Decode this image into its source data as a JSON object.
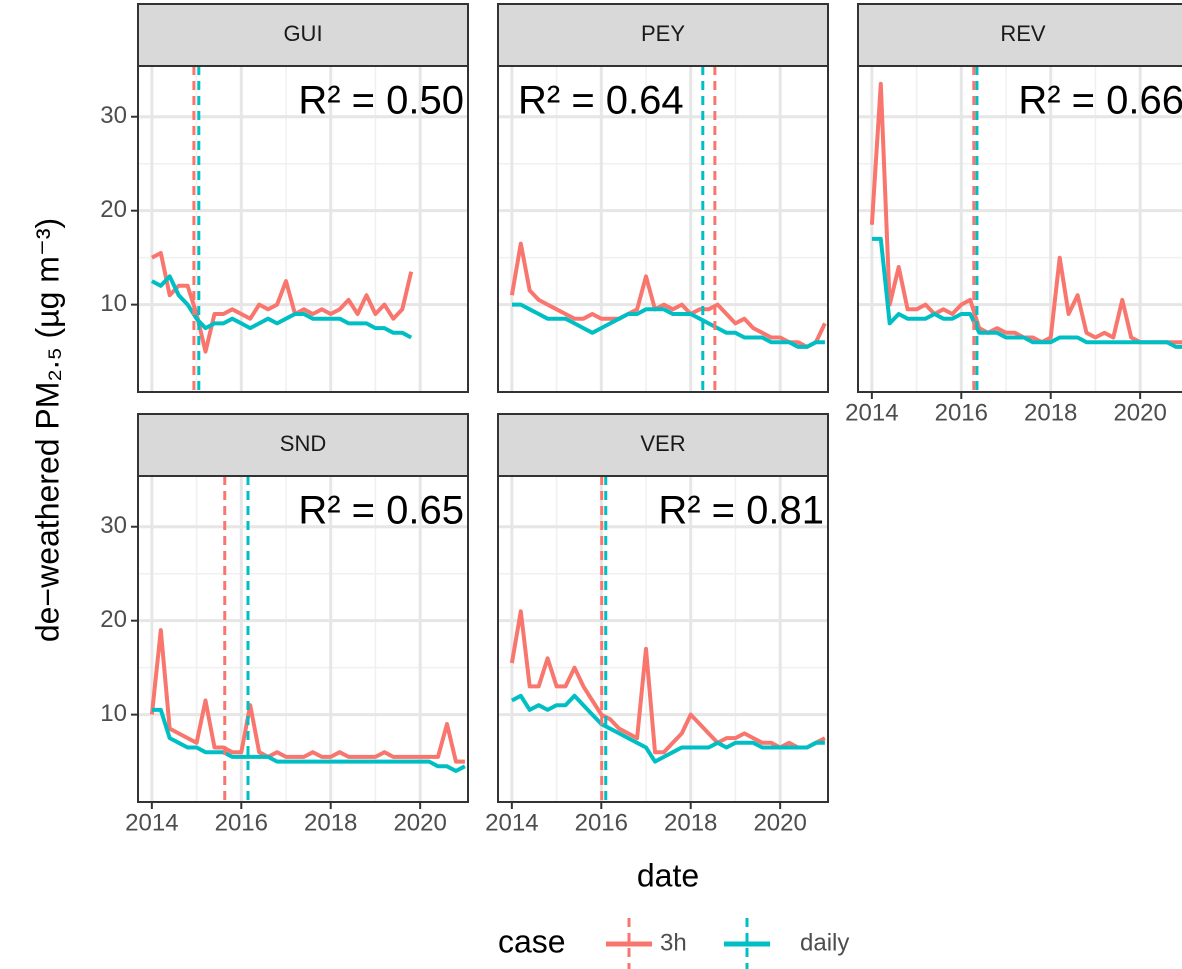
{
  "chart_data": {
    "type": "line",
    "xlabel": "date",
    "ylabel": "de−weathered PM₂.₅ (µg m⁻³)",
    "legend_title": "case",
    "legend": [
      {
        "name": "3h",
        "color": "#f8766d"
      },
      {
        "name": "daily",
        "color": "#00bfc4"
      }
    ],
    "grid": true,
    "xlim": [
      2013.69,
      2021.07
    ],
    "xticks": [
      2014,
      2016,
      2018,
      2020
    ],
    "ylim": [
      0.7,
      35.4
    ],
    "yticks": [
      10,
      20,
      30
    ],
    "x": [
      2014.0,
      2014.2,
      2014.4,
      2014.6,
      2014.8,
      2015.0,
      2015.2,
      2015.4,
      2015.6,
      2015.8,
      2016.0,
      2016.2,
      2016.4,
      2016.6,
      2016.8,
      2017.0,
      2017.2,
      2017.4,
      2017.6,
      2017.8,
      2018.0,
      2018.2,
      2018.4,
      2018.6,
      2018.8,
      2019.0,
      2019.2,
      2019.4,
      2019.6,
      2019.8,
      2020.0,
      2020.2,
      2020.4,
      2020.6,
      2020.8,
      2021.0
    ],
    "panels": [
      {
        "title": "GUI",
        "annotation": "R² = 0.50",
        "series": [
          {
            "break": 2014.94,
            "values": [
              15,
              15.5,
              11,
              12,
              12,
              9,
              5,
              9,
              9,
              9.5,
              9,
              8.5,
              10,
              9.5,
              10,
              12.5,
              9,
              9.5,
              9,
              9.5,
              9,
              9.5,
              10.5,
              9,
              11,
              9,
              10,
              8.5,
              9.5,
              13.5,
              null,
              null,
              null,
              null,
              null,
              null
            ]
          },
          {
            "break": 2015.05,
            "values": [
              12.5,
              12,
              13,
              11,
              10,
              8.5,
              7.5,
              8,
              8,
              8.5,
              8,
              7.5,
              8,
              8.5,
              8,
              8.5,
              9,
              9,
              8.5,
              8.5,
              8.5,
              8.5,
              8,
              8,
              8,
              7.5,
              7.5,
              7,
              7,
              6.5,
              null,
              null,
              null,
              null,
              null,
              null
            ]
          }
        ]
      },
      {
        "title": "PEY",
        "annotation": "R² = 0.64",
        "series": [
          {
            "break": 2018.54,
            "values": [
              11,
              16.5,
              11.5,
              10.5,
              10,
              9.5,
              9,
              8.5,
              8.5,
              9,
              8.5,
              8.5,
              8.5,
              9,
              9.5,
              13,
              9.5,
              10,
              9.5,
              10,
              9,
              9.5,
              9.5,
              10,
              9,
              8,
              8.5,
              7.5,
              7,
              6.5,
              6.5,
              6,
              6,
              5.5,
              6,
              8
            ]
          },
          {
            "break": 2018.27,
            "values": [
              10,
              10,
              9.5,
              9,
              8.5,
              8.5,
              8.5,
              8,
              7.5,
              7,
              7.5,
              8,
              8.5,
              9,
              9,
              9.5,
              9.5,
              9.5,
              9,
              9,
              9,
              8.5,
              8,
              7.5,
              7,
              7,
              6.5,
              6.5,
              6.5,
              6,
              6,
              6,
              5.5,
              5.5,
              6,
              6
            ]
          }
        ]
      },
      {
        "title": "REV",
        "annotation": "R² = 0.66",
        "series": [
          {
            "break": 2016.28,
            "values": [
              18.5,
              33.5,
              10,
              14,
              9.5,
              9.5,
              10,
              9,
              9.5,
              9,
              10,
              10.5,
              7.5,
              7,
              7.5,
              7,
              7,
              6.5,
              6.5,
              6,
              6.5,
              15,
              9,
              11,
              7,
              6.5,
              7,
              6.5,
              10.5,
              6.5,
              6,
              6,
              6,
              6,
              6,
              6
            ]
          },
          {
            "break": 2016.35,
            "values": [
              17,
              17,
              8,
              9,
              8.5,
              8.5,
              8.5,
              9,
              8.5,
              8.5,
              9,
              9,
              7,
              7,
              7,
              6.5,
              6.5,
              6.5,
              6,
              6,
              6,
              6.5,
              6.5,
              6.5,
              6,
              6,
              6,
              6,
              6,
              6,
              6,
              6,
              6,
              6,
              5.5,
              5.5
            ]
          }
        ]
      },
      {
        "title": "SND",
        "annotation": "R² = 0.65",
        "series": [
          {
            "break": 2015.63,
            "values": [
              10,
              19,
              8.5,
              8,
              7.5,
              7,
              11.5,
              6.5,
              6.5,
              6,
              6,
              11,
              6,
              5.5,
              6,
              5.5,
              5.5,
              5.5,
              6,
              5.5,
              5.5,
              6,
              5.5,
              5.5,
              5.5,
              5.5,
              6,
              5.5,
              5.5,
              5.5,
              5.5,
              5.5,
              5.5,
              9,
              5,
              5
            ]
          },
          {
            "break": 2016.15,
            "values": [
              10.5,
              10.5,
              7.5,
              7,
              6.5,
              6.5,
              6,
              6,
              6,
              5.5,
              5.5,
              5.5,
              5.5,
              5.5,
              5,
              5,
              5,
              5,
              5,
              5,
              5,
              5,
              5,
              5,
              5,
              5,
              5,
              5,
              5,
              5,
              5,
              5,
              4.5,
              4.5,
              4,
              4.5
            ]
          }
        ]
      },
      {
        "title": "VER",
        "annotation": "R² = 0.81",
        "series": [
          {
            "break": 2016.01,
            "values": [
              15.5,
              21,
              13,
              13,
              16,
              13,
              13,
              15,
              13,
              11.5,
              10,
              9.5,
              8.5,
              8,
              7.5,
              17,
              6,
              6,
              7,
              8,
              10,
              9,
              8,
              7,
              7.5,
              7.5,
              8,
              7.5,
              7,
              7,
              6.5,
              7,
              6.5,
              6.5,
              7,
              7.5
            ]
          },
          {
            "break": 2016.1,
            "values": [
              11.5,
              12,
              10.5,
              11,
              10.5,
              11,
              11,
              12,
              11,
              10,
              9,
              8.5,
              8,
              7.5,
              7,
              6.5,
              5,
              5.5,
              6,
              6.5,
              6.5,
              6.5,
              6.5,
              7,
              6.5,
              7,
              7,
              7,
              6.5,
              6.5,
              6.5,
              6.5,
              6.5,
              6.5,
              7,
              7
            ]
          }
        ]
      }
    ]
  }
}
